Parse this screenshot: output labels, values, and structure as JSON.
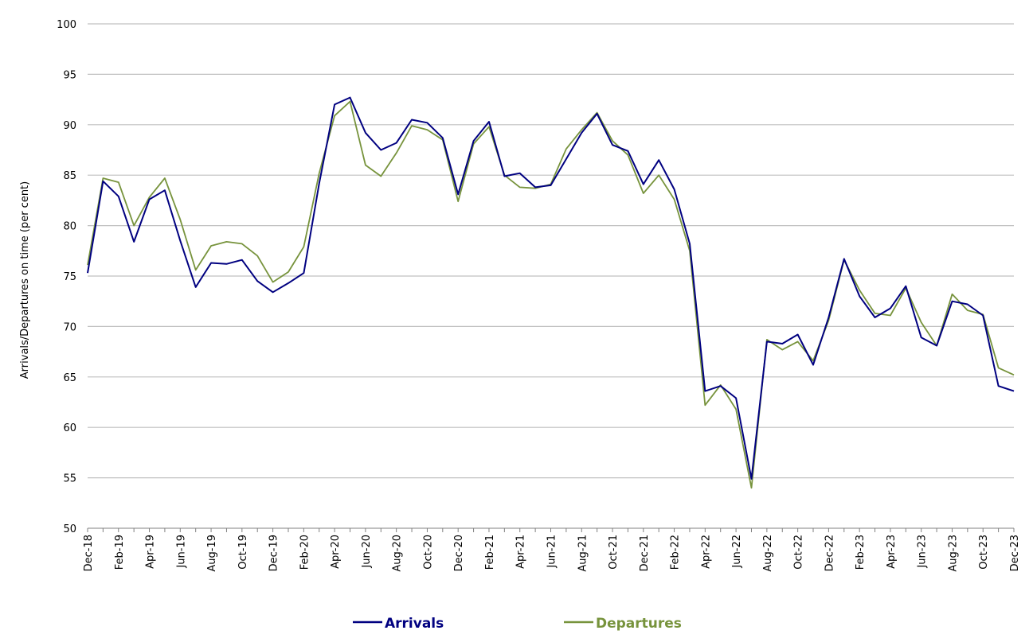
{
  "chart_data": {
    "type": "line",
    "title": "",
    "xlabel": "",
    "ylabel": "Arrivals/Departures on time (per cent)",
    "ylim": [
      50,
      100
    ],
    "y_ticks": [
      50,
      55,
      60,
      65,
      70,
      75,
      80,
      85,
      90,
      95,
      100
    ],
    "grid": true,
    "legend_position": "bottom",
    "x_tick_labels": [
      "Dec-18",
      "Feb-19",
      "Apr-19",
      "Jun-19",
      "Aug-19",
      "Oct-19",
      "Dec-19",
      "Feb-20",
      "Apr-20",
      "Jun-20",
      "Aug-20",
      "Oct-20",
      "Dec-20",
      "Feb-21",
      "Apr-21",
      "Jun-21",
      "Aug-21",
      "Oct-21",
      "Dec-21",
      "Feb-22",
      "Apr-22",
      "Jun-22",
      "Aug-22",
      "Oct-22",
      "Dec-22",
      "Feb-23",
      "Apr-23",
      "Jun-23",
      "Aug-23",
      "Oct-23",
      "Dec-23"
    ],
    "categories": [
      "Dec-18",
      "Jan-19",
      "Feb-19",
      "Mar-19",
      "Apr-19",
      "May-19",
      "Jun-19",
      "Jul-19",
      "Aug-19",
      "Sep-19",
      "Oct-19",
      "Nov-19",
      "Dec-19",
      "Jan-20",
      "Feb-20",
      "Mar-20",
      "Apr-20",
      "May-20",
      "Jun-20",
      "Jul-20",
      "Aug-20",
      "Sep-20",
      "Oct-20",
      "Nov-20",
      "Dec-20",
      "Jan-21",
      "Feb-21",
      "Mar-21",
      "Apr-21",
      "May-21",
      "Jun-21",
      "Jul-21",
      "Aug-21",
      "Sep-21",
      "Oct-21",
      "Nov-21",
      "Dec-21",
      "Jan-22",
      "Feb-22",
      "Mar-22",
      "Apr-22",
      "May-22",
      "Jun-22",
      "Jul-22",
      "Aug-22",
      "Sep-22",
      "Oct-22",
      "Nov-22",
      "Dec-22",
      "Jan-23",
      "Feb-23",
      "Mar-23",
      "Apr-23",
      "May-23",
      "Jun-23",
      "Jul-23",
      "Aug-23",
      "Sep-23",
      "Oct-23",
      "Nov-23",
      "Dec-23"
    ],
    "series": [
      {
        "name": "Arrivals",
        "color": "#000080",
        "values": [
          75.3,
          84.4,
          82.9,
          78.4,
          82.6,
          83.5,
          78.5,
          73.9,
          76.3,
          76.2,
          76.6,
          74.5,
          73.4,
          74.3,
          75.3,
          84.2,
          92.0,
          92.7,
          89.2,
          87.5,
          88.2,
          90.5,
          90.2,
          88.7,
          83.1,
          88.4,
          90.3,
          84.9,
          85.2,
          83.8,
          84.0,
          86.6,
          89.2,
          91.1,
          88.0,
          87.4,
          84.1,
          86.5,
          83.6,
          78.2,
          63.6,
          64.1,
          62.9,
          54.9,
          68.5,
          68.3,
          69.2,
          66.2,
          70.9,
          76.7,
          73.0,
          70.9,
          71.8,
          74.0,
          68.9,
          68.1,
          72.5,
          72.2,
          71.1,
          64.1,
          63.6
        ]
      },
      {
        "name": "Departures",
        "color": "#77933C",
        "values": [
          76.1,
          84.7,
          84.3,
          80.0,
          82.8,
          84.7,
          80.6,
          75.6,
          78.0,
          78.4,
          78.2,
          77.0,
          74.4,
          75.4,
          77.9,
          85.2,
          90.9,
          92.3,
          86.0,
          84.9,
          87.2,
          89.9,
          89.5,
          88.5,
          82.4,
          88.1,
          89.8,
          85.0,
          83.8,
          83.7,
          84.1,
          87.6,
          89.5,
          91.2,
          88.4,
          87.0,
          83.2,
          85.0,
          82.6,
          77.5,
          62.2,
          64.2,
          61.8,
          54.0,
          68.7,
          67.7,
          68.5,
          66.6,
          70.6,
          76.6,
          73.6,
          71.3,
          71.1,
          73.8,
          70.4,
          68.1,
          73.2,
          71.6,
          71.2,
          65.9,
          65.2
        ]
      }
    ]
  }
}
